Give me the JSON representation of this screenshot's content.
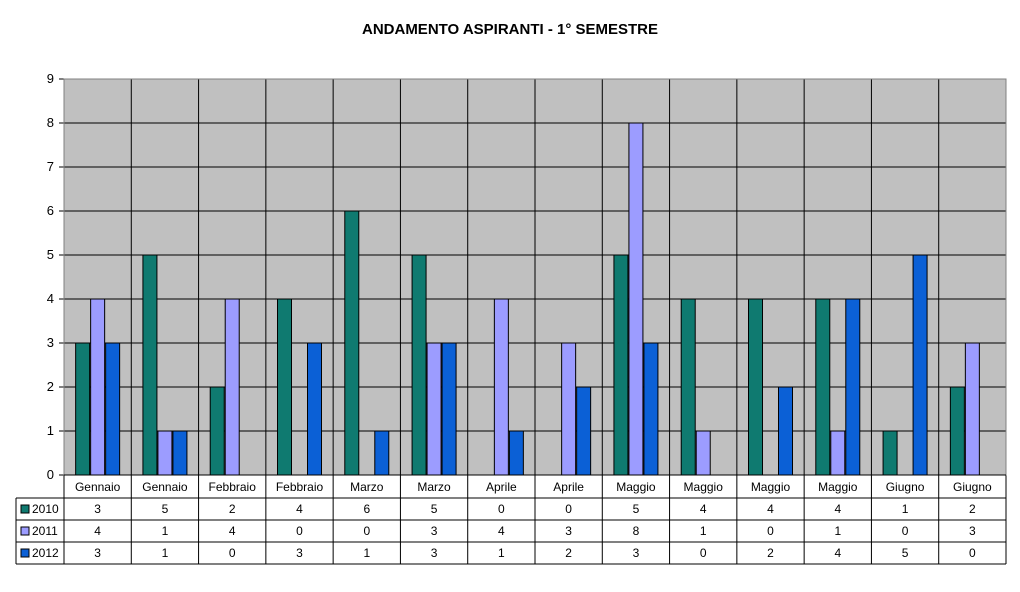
{
  "chart_data": {
    "type": "bar",
    "title": "ANDAMENTO ASPIRANTI  -  1° SEMESTRE",
    "xlabel": "",
    "ylabel": "",
    "ylim": [
      0,
      9
    ],
    "yticks": [
      "0",
      "1",
      "2",
      "3",
      "4",
      "5",
      "6",
      "7",
      "8",
      "9"
    ],
    "grid": true,
    "legend": "data-table-left",
    "categories": [
      "Gennaio",
      "Gennaio",
      "Febbraio",
      "Febbraio",
      "Marzo",
      "Marzo",
      "Aprile",
      "Aprile",
      "Maggio",
      "Maggio",
      "Maggio",
      "Maggio",
      "Giugno",
      "Giugno"
    ],
    "series": [
      {
        "name": "2010",
        "color": "#0f7a70",
        "values": [
          3,
          5,
          2,
          4,
          6,
          5,
          0,
          0,
          5,
          4,
          4,
          4,
          1,
          2
        ],
        "labels": [
          "3",
          "5",
          "2",
          "4",
          "6",
          "5",
          "0",
          "0",
          "5",
          "4",
          "4",
          "4",
          "1",
          "2"
        ]
      },
      {
        "name": "2011",
        "color": "#9c9cff",
        "values": [
          4,
          1,
          4,
          0,
          0,
          3,
          4,
          3,
          8,
          1,
          0,
          1,
          0,
          3
        ],
        "labels": [
          "4",
          "1",
          "4",
          "0",
          "0",
          "3",
          "4",
          "3",
          "8",
          "1",
          "0",
          "1",
          "0",
          "3"
        ]
      },
      {
        "name": "2012",
        "color": "#0b60d6",
        "values": [
          3,
          1,
          0,
          3,
          1,
          3,
          1,
          2,
          3,
          0,
          2,
          4,
          5,
          0
        ],
        "labels": [
          "3",
          "1",
          "0",
          "3",
          "1",
          "3",
          "1",
          "2",
          "3",
          "0",
          "2",
          "4",
          "5",
          "0"
        ]
      }
    ]
  }
}
